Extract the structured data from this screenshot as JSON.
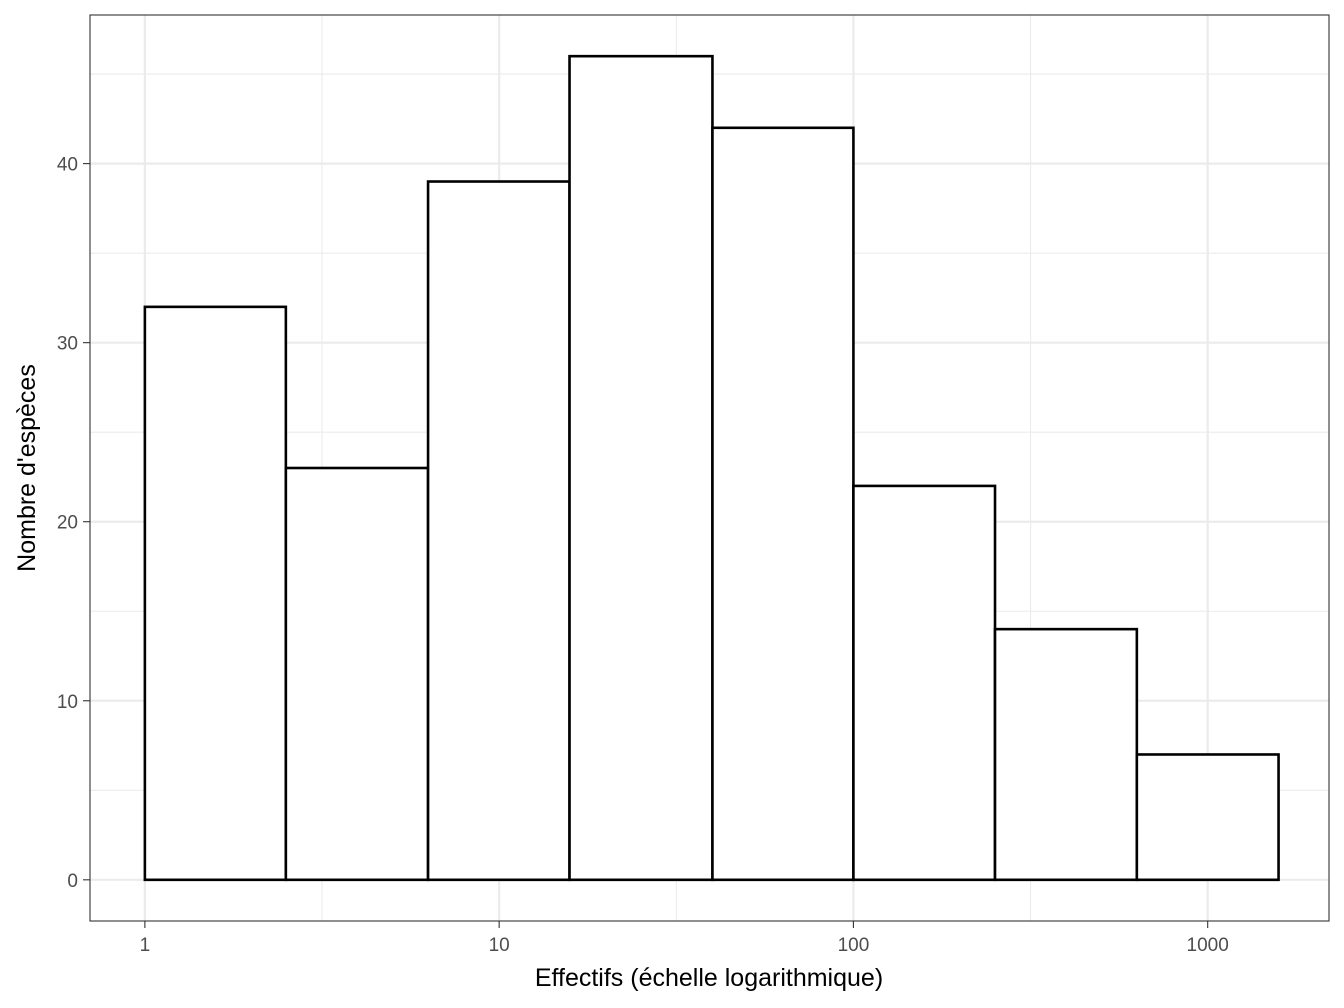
{
  "chart_data": {
    "type": "bar",
    "subtype": "histogram",
    "xlabel": "Effectifs (échelle logarithmique)",
    "ylabel": "Nombre d'espèces",
    "x_scale": "log10",
    "xlim": [
      0.7,
      2200
    ],
    "ylim": [
      -2.3,
      48.3
    ],
    "x_ticks": [
      1,
      10,
      100,
      1000
    ],
    "x_tick_labels": [
      "1",
      "10",
      "100",
      "1000"
    ],
    "y_ticks": [
      0,
      10,
      20,
      30,
      40
    ],
    "y_tick_labels": [
      "0",
      "10",
      "20",
      "30",
      "40"
    ],
    "bins": [
      {
        "x0": 1,
        "x1": 2.5,
        "count": 32
      },
      {
        "x0": 2.5,
        "x1": 6.3,
        "count": 23
      },
      {
        "x0": 6.3,
        "x1": 15.8,
        "count": 39
      },
      {
        "x0": 15.8,
        "x1": 40,
        "count": 46
      },
      {
        "x0": 40,
        "x1": 100,
        "count": 42
      },
      {
        "x0": 100,
        "x1": 251,
        "count": 22
      },
      {
        "x0": 251,
        "x1": 631,
        "count": 14
      },
      {
        "x0": 631,
        "x1": 1585,
        "count": 7
      }
    ],
    "bar_fill": "#ffffff",
    "bar_stroke": "#000000",
    "grid": true,
    "grid_color": "#ebebeb",
    "panel_border_color": "#333333",
    "legend": "none"
  }
}
